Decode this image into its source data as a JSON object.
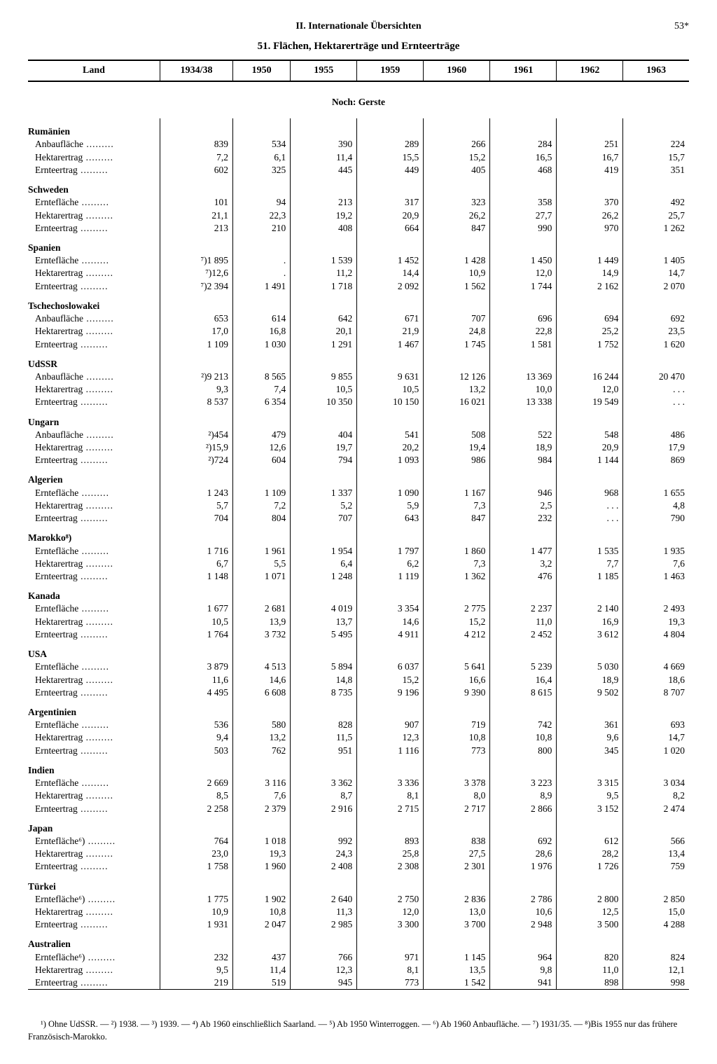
{
  "header": {
    "sectionTitle": "II. Internationale Übersichten",
    "pageNumber": "53*",
    "tableTitle": "51. Flächen, Hektarerträge und Ernteerträge"
  },
  "table": {
    "landHeader": "Land",
    "years": [
      "1934/38",
      "1950",
      "1955",
      "1959",
      "1960",
      "1961",
      "1962",
      "1963"
    ],
    "subtitle": "Noch: Gerste",
    "rowLabels": {
      "anbau": "Anbaufläche",
      "ernteflaeche": "Erntefläche",
      "hektar": "Hektarertrag",
      "ernteertrag": "Ernteertrag"
    },
    "countries": [
      {
        "name": "Rumänien",
        "rows": [
          {
            "label": "anbau",
            "v": [
              "839",
              "534",
              "390",
              "289",
              "266",
              "284",
              "251",
              "224"
            ]
          },
          {
            "label": "hektar",
            "v": [
              "7,2",
              "6,1",
              "11,4",
              "15,5",
              "15,2",
              "16,5",
              "16,7",
              "15,7"
            ]
          },
          {
            "label": "ernteertrag",
            "v": [
              "602",
              "325",
              "445",
              "449",
              "405",
              "468",
              "419",
              "351"
            ]
          }
        ]
      },
      {
        "name": "Schweden",
        "rows": [
          {
            "label": "ernteflaeche",
            "v": [
              "101",
              "94",
              "213",
              "317",
              "323",
              "358",
              "370",
              "492"
            ]
          },
          {
            "label": "hektar",
            "v": [
              "21,1",
              "22,3",
              "19,2",
              "20,9",
              "26,2",
              "27,7",
              "26,2",
              "25,7"
            ]
          },
          {
            "label": "ernteertrag",
            "v": [
              "213",
              "210",
              "408",
              "664",
              "847",
              "990",
              "970",
              "1 262"
            ]
          }
        ]
      },
      {
        "name": "Spanien",
        "rows": [
          {
            "label": "ernteflaeche",
            "v": [
              "⁷)1 895",
              ".",
              "1 539",
              "1 452",
              "1 428",
              "1 450",
              "1 449",
              "1 405"
            ]
          },
          {
            "label": "hektar",
            "v": [
              "⁷)12,6",
              ".",
              "11,2",
              "14,4",
              "10,9",
              "12,0",
              "14,9",
              "14,7"
            ]
          },
          {
            "label": "ernteertrag",
            "v": [
              "⁷)2 394",
              "1 491",
              "1 718",
              "2 092",
              "1 562",
              "1 744",
              "2 162",
              "2 070"
            ]
          }
        ]
      },
      {
        "name": "Tschechoslowakei",
        "rows": [
          {
            "label": "anbau",
            "v": [
              "653",
              "614",
              "642",
              "671",
              "707",
              "696",
              "694",
              "692"
            ]
          },
          {
            "label": "hektar",
            "v": [
              "17,0",
              "16,8",
              "20,1",
              "21,9",
              "24,8",
              "22,8",
              "25,2",
              "23,5"
            ]
          },
          {
            "label": "ernteertrag",
            "v": [
              "1 109",
              "1 030",
              "1 291",
              "1 467",
              "1 745",
              "1 581",
              "1 752",
              "1 620"
            ]
          }
        ]
      },
      {
        "name": "UdSSR",
        "rows": [
          {
            "label": "anbau",
            "v": [
              "²)9 213",
              "8 565",
              "9 855",
              "9 631",
              "12 126",
              "13 369",
              "16 244",
              "20 470"
            ]
          },
          {
            "label": "hektar",
            "v": [
              "9,3",
              "7,4",
              "10,5",
              "10,5",
              "13,2",
              "10,0",
              "12,0",
              ". . ."
            ]
          },
          {
            "label": "ernteertrag",
            "v": [
              "8 537",
              "6 354",
              "10 350",
              "10 150",
              "16 021",
              "13 338",
              "19 549",
              ". . ."
            ]
          }
        ]
      },
      {
        "name": "Ungarn",
        "rows": [
          {
            "label": "anbau",
            "v": [
              "²)454",
              "479",
              "404",
              "541",
              "508",
              "522",
              "548",
              "486"
            ]
          },
          {
            "label": "hektar",
            "v": [
              "²)15,9",
              "12,6",
              "19,7",
              "20,2",
              "19,4",
              "18,9",
              "20,9",
              "17,9"
            ]
          },
          {
            "label": "ernteertrag",
            "v": [
              "²)724",
              "604",
              "794",
              "1 093",
              "986",
              "984",
              "1 144",
              "869"
            ]
          }
        ]
      },
      {
        "name": "Algerien",
        "rows": [
          {
            "label": "ernteflaeche",
            "v": [
              "1 243",
              "1 109",
              "1 337",
              "1 090",
              "1 167",
              "946",
              "968",
              "1 655"
            ]
          },
          {
            "label": "hektar",
            "v": [
              "5,7",
              "7,2",
              "5,2",
              "5,9",
              "7,3",
              "2,5",
              ". . .",
              "4,8"
            ]
          },
          {
            "label": "ernteertrag",
            "v": [
              "704",
              "804",
              "707",
              "643",
              "847",
              "232",
              ". . .",
              "790"
            ]
          }
        ]
      },
      {
        "name": "Marokko⁸)",
        "rows": [
          {
            "label": "ernteflaeche",
            "v": [
              "1 716",
              "1 961",
              "1 954",
              "1 797",
              "1 860",
              "1 477",
              "1 535",
              "1 935"
            ]
          },
          {
            "label": "hektar",
            "v": [
              "6,7",
              "5,5",
              "6,4",
              "6,2",
              "7,3",
              "3,2",
              "7,7",
              "7,6"
            ]
          },
          {
            "label": "ernteertrag",
            "v": [
              "1 148",
              "1 071",
              "1 248",
              "1 119",
              "1 362",
              "476",
              "1 185",
              "1 463"
            ]
          }
        ]
      },
      {
        "name": "Kanada",
        "rows": [
          {
            "label": "ernteflaeche",
            "v": [
              "1 677",
              "2 681",
              "4 019",
              "3 354",
              "2 775",
              "2 237",
              "2 140",
              "2 493"
            ]
          },
          {
            "label": "hektar",
            "v": [
              "10,5",
              "13,9",
              "13,7",
              "14,6",
              "15,2",
              "11,0",
              "16,9",
              "19,3"
            ]
          },
          {
            "label": "ernteertrag",
            "v": [
              "1 764",
              "3 732",
              "5 495",
              "4 911",
              "4 212",
              "2 452",
              "3 612",
              "4 804"
            ]
          }
        ]
      },
      {
        "name": "USA",
        "rows": [
          {
            "label": "ernteflaeche",
            "v": [
              "3 879",
              "4 513",
              "5 894",
              "6 037",
              "5 641",
              "5 239",
              "5 030",
              "4 669"
            ]
          },
          {
            "label": "hektar",
            "v": [
              "11,6",
              "14,6",
              "14,8",
              "15,2",
              "16,6",
              "16,4",
              "18,9",
              "18,6"
            ]
          },
          {
            "label": "ernteertrag",
            "v": [
              "4 495",
              "6 608",
              "8 735",
              "9 196",
              "9 390",
              "8 615",
              "9 502",
              "8 707"
            ]
          }
        ]
      },
      {
        "name": "Argentinien",
        "rows": [
          {
            "label": "ernteflaeche",
            "v": [
              "536",
              "580",
              "828",
              "907",
              "719",
              "742",
              "361",
              "693"
            ]
          },
          {
            "label": "hektar",
            "v": [
              "9,4",
              "13,2",
              "11,5",
              "12,3",
              "10,8",
              "10,8",
              "9,6",
              "14,7"
            ]
          },
          {
            "label": "ernteertrag",
            "v": [
              "503",
              "762",
              "951",
              "1 116",
              "773",
              "800",
              "345",
              "1 020"
            ]
          }
        ]
      },
      {
        "name": "Indien",
        "rows": [
          {
            "label": "ernteflaeche",
            "v": [
              "2 669",
              "3 116",
              "3 362",
              "3 336",
              "3 378",
              "3 223",
              "3 315",
              "3 034"
            ]
          },
          {
            "label": "hektar",
            "v": [
              "8,5",
              "7,6",
              "8,7",
              "8,1",
              "8,0",
              "8,9",
              "9,5",
              "8,2"
            ]
          },
          {
            "label": "ernteertrag",
            "v": [
              "2 258",
              "2 379",
              "2 916",
              "2 715",
              "2 717",
              "2 866",
              "3 152",
              "2 474"
            ]
          }
        ]
      },
      {
        "name": "Japan",
        "rows": [
          {
            "label": "ernteflaeche",
            "suffix": "⁶)",
            "v": [
              "764",
              "1 018",
              "992",
              "893",
              "838",
              "692",
              "612",
              "566"
            ]
          },
          {
            "label": "hektar",
            "v": [
              "23,0",
              "19,3",
              "24,3",
              "25,8",
              "27,5",
              "28,6",
              "28,2",
              "13,4"
            ]
          },
          {
            "label": "ernteertrag",
            "v": [
              "1 758",
              "1 960",
              "2 408",
              "2 308",
              "2 301",
              "1 976",
              "1 726",
              "759"
            ]
          }
        ]
      },
      {
        "name": "Türkei",
        "rows": [
          {
            "label": "ernteflaeche",
            "suffix": "⁶)",
            "v": [
              "1 775",
              "1 902",
              "2 640",
              "2 750",
              "2 836",
              "2 786",
              "2 800",
              "2 850"
            ]
          },
          {
            "label": "hektar",
            "v": [
              "10,9",
              "10,8",
              "11,3",
              "12,0",
              "13,0",
              "10,6",
              "12,5",
              "15,0"
            ]
          },
          {
            "label": "ernteertrag",
            "v": [
              "1 931",
              "2 047",
              "2 985",
              "3 300",
              "3 700",
              "2 948",
              "3 500",
              "4 288"
            ]
          }
        ]
      },
      {
        "name": "Australien",
        "rows": [
          {
            "label": "ernteflaeche",
            "suffix": "⁶)",
            "v": [
              "232",
              "437",
              "766",
              "971",
              "1 145",
              "964",
              "820",
              "824"
            ]
          },
          {
            "label": "hektar",
            "v": [
              "9,5",
              "11,4",
              "12,3",
              "8,1",
              "13,5",
              "9,8",
              "11,0",
              "12,1"
            ]
          },
          {
            "label": "ernteertrag",
            "v": [
              "219",
              "519",
              "945",
              "773",
              "1 542",
              "941",
              "898",
              "998"
            ]
          }
        ]
      }
    ]
  },
  "footnotes": "¹) Ohne UdSSR. — ²) 1938. — ³) 1939. — ⁴) Ab 1960 einschließlich Saarland. — ⁵) Ab 1950 Winterroggen. — ⁶) Ab 1960 Anbaufläche. — ⁷) 1931/35. — ⁸)Bis 1955 nur das frühere Französisch-Marokko."
}
